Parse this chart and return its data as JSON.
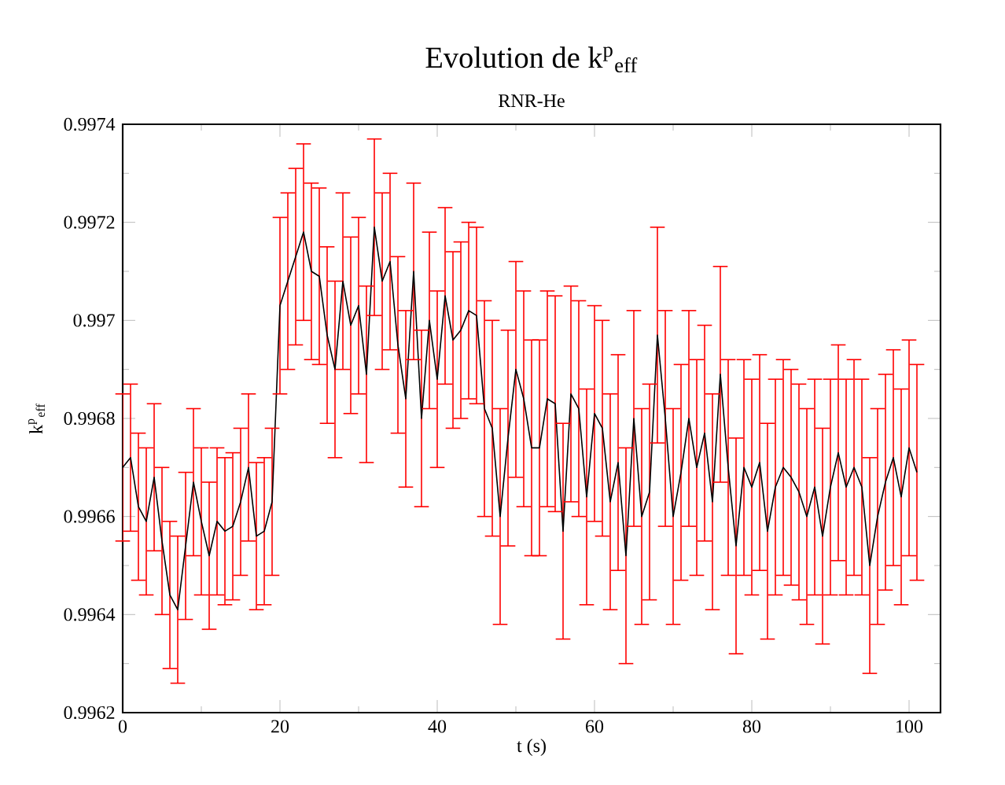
{
  "chart_data": {
    "type": "line",
    "title": "Evolution de k$^{p}$$_{eff}$",
    "subtitle": "RNR-He",
    "xlabel": "t (s)",
    "ylabel": "k$^{p}$$_{eff}$",
    "x": [
      0,
      1,
      2,
      3,
      4,
      5,
      6,
      7,
      8,
      9,
      10,
      11,
      12,
      13,
      14,
      15,
      16,
      17,
      18,
      19,
      20,
      21,
      22,
      23,
      24,
      25,
      26,
      27,
      28,
      29,
      30,
      31,
      32,
      33,
      34,
      35,
      36,
      37,
      38,
      39,
      40,
      41,
      42,
      43,
      44,
      45,
      46,
      47,
      48,
      49,
      50,
      51,
      52,
      53,
      54,
      55,
      56,
      57,
      58,
      59,
      60,
      61,
      62,
      63,
      64,
      65,
      66,
      67,
      68,
      69,
      70,
      71,
      72,
      73,
      74,
      75,
      76,
      77,
      78,
      79,
      80,
      81,
      82,
      83,
      84,
      85,
      86,
      87,
      88,
      89,
      90,
      91,
      92,
      93,
      94,
      95,
      96,
      97,
      98,
      99,
      100,
      101
    ],
    "series": [
      {
        "color": "#000000",
        "values": [
          0.9967,
          0.99672,
          0.99662,
          0.99659,
          0.99668,
          0.99655,
          0.99644,
          0.99641,
          0.99654,
          0.99667,
          0.99659,
          0.99652,
          0.99659,
          0.99657,
          0.99658,
          0.99663,
          0.9967,
          0.99656,
          0.99657,
          0.99663,
          0.99703,
          0.99708,
          0.99713,
          0.99718,
          0.9971,
          0.99709,
          0.99697,
          0.9969,
          0.99708,
          0.99699,
          0.99703,
          0.99689,
          0.99719,
          0.99708,
          0.99712,
          0.99695,
          0.99684,
          0.9971,
          0.9968,
          0.997,
          0.99688,
          0.99705,
          0.99696,
          0.99698,
          0.99702,
          0.99701,
          0.99682,
          0.99678,
          0.9966,
          0.99676,
          0.9969,
          0.99684,
          0.99674,
          0.99674,
          0.99684,
          0.99683,
          0.99657,
          0.99685,
          0.99682,
          0.99664,
          0.99681,
          0.99678,
          0.99663,
          0.99671,
          0.99652,
          0.9968,
          0.9966,
          0.99665,
          0.99697,
          0.9968,
          0.9966,
          0.99669,
          0.9968,
          0.9967,
          0.99677,
          0.99663,
          0.99689,
          0.9967,
          0.99654,
          0.9967,
          0.99666,
          0.99671,
          0.99657,
          0.99666,
          0.9967,
          0.99668,
          0.99665,
          0.9966,
          0.99666,
          0.99656,
          0.99666,
          0.99673,
          0.99666,
          0.9967,
          0.99666,
          0.9965,
          0.9966,
          0.99667,
          0.99672,
          0.99664,
          0.99674,
          0.99669
        ],
        "errors": [
          0.00015,
          0.00015,
          0.00015,
          0.00015,
          0.00015,
          0.00015,
          0.00015,
          0.00015,
          0.00015,
          0.00015,
          0.00015,
          0.00015,
          0.00015,
          0.00015,
          0.00015,
          0.00015,
          0.00015,
          0.00015,
          0.00015,
          0.00015,
          0.00018,
          0.00018,
          0.00018,
          0.00018,
          0.00018,
          0.00018,
          0.00018,
          0.00018,
          0.00018,
          0.00018,
          0.00018,
          0.00018,
          0.00018,
          0.00018,
          0.00018,
          0.00018,
          0.00018,
          0.00018,
          0.00018,
          0.00018,
          0.00018,
          0.00018,
          0.00018,
          0.00018,
          0.00018,
          0.00018,
          0.00022,
          0.00022,
          0.00022,
          0.00022,
          0.00022,
          0.00022,
          0.00022,
          0.00022,
          0.00022,
          0.00022,
          0.00022,
          0.00022,
          0.00022,
          0.00022,
          0.00022,
          0.00022,
          0.00022,
          0.00022,
          0.00022,
          0.00022,
          0.00022,
          0.00022,
          0.00022,
          0.00022,
          0.00022,
          0.00022,
          0.00022,
          0.00022,
          0.00022,
          0.00022,
          0.00022,
          0.00022,
          0.00022,
          0.00022,
          0.00022,
          0.00022,
          0.00022,
          0.00022,
          0.00022,
          0.00022,
          0.00022,
          0.00022,
          0.00022,
          0.00022,
          0.00022,
          0.00022,
          0.00022,
          0.00022,
          0.00022,
          0.00022,
          0.00022,
          0.00022,
          0.00022,
          0.00022,
          0.00022,
          0.00022
        ]
      }
    ],
    "xlim": [
      0,
      104
    ],
    "ylim": [
      0.9962,
      0.9974
    ],
    "xticks": [
      0,
      20,
      40,
      60,
      80,
      100
    ],
    "yticks": [
      0.9962,
      0.9964,
      0.9966,
      0.9968,
      0.997,
      0.9972,
      0.9974
    ],
    "grid": false,
    "marker": "none",
    "line_style": "solid"
  }
}
